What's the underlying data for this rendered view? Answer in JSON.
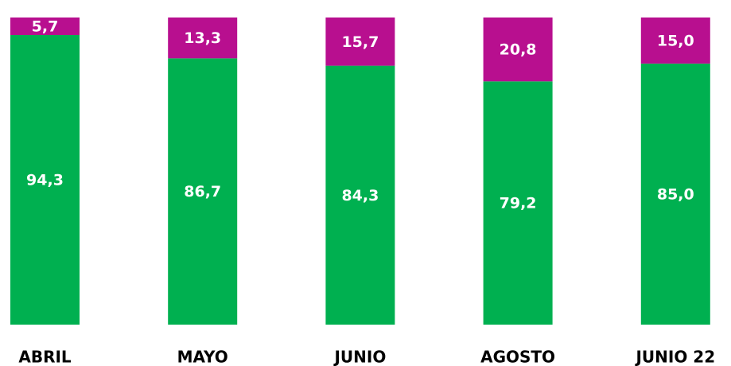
{
  "chart_data": {
    "type": "stacked_bar",
    "categories": [
      "ABRIL",
      "MAYO",
      "JUNIO",
      "AGOSTO",
      "JUNIO 22"
    ],
    "ylim": [
      0,
      100
    ],
    "series": [
      {
        "color": "#00b050",
        "values": [
          94.3,
          86.7,
          84.3,
          79.2,
          85.0
        ],
        "value_labels": [
          "94,3",
          "86,7",
          "84,3",
          "79,2",
          "85,0"
        ]
      },
      {
        "color": "#b80f8f",
        "values": [
          5.7,
          13.3,
          15.7,
          20.8,
          15.0
        ],
        "value_labels": [
          "5,7",
          "13,3",
          "15,7",
          "20,8",
          "15,0"
        ]
      }
    ]
  }
}
